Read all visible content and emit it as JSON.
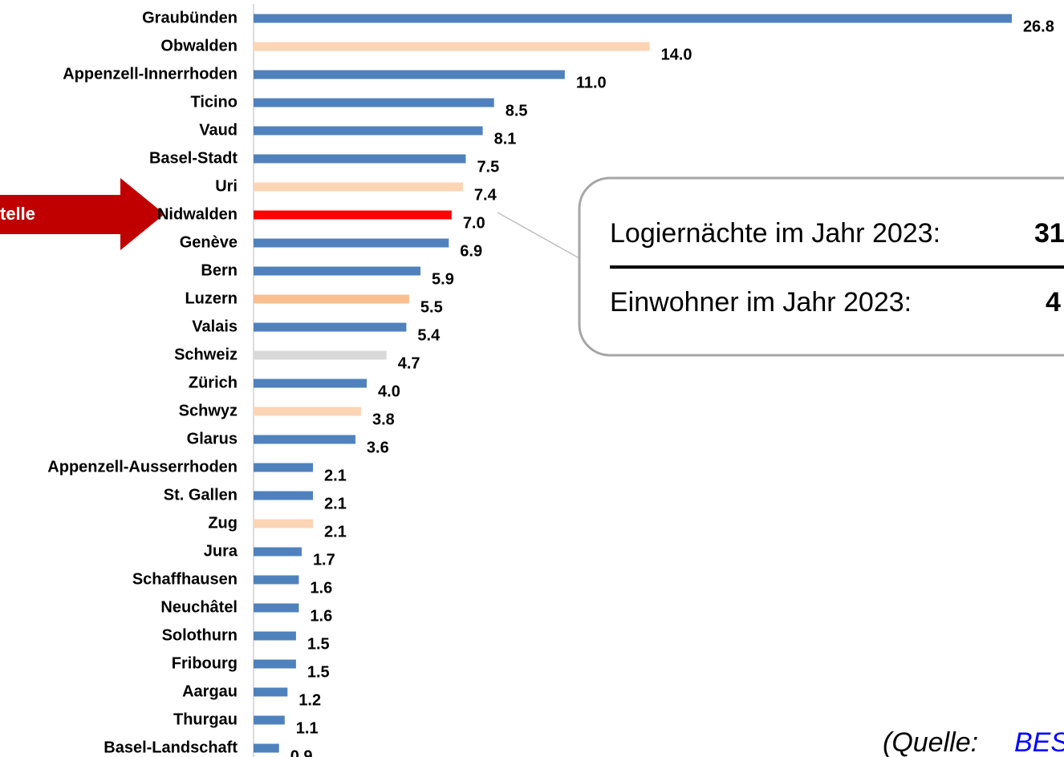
{
  "chart_data": {
    "type": "bar",
    "orientation": "horizontal",
    "categories": [
      "Graubünden",
      "Obwalden",
      "Appenzell-Innerrhoden",
      "Ticino",
      "Vaud",
      "Basel-Stadt",
      "Uri",
      "Nidwalden",
      "Genève",
      "Bern",
      "Luzern",
      "Valais",
      "Schweiz",
      "Zürich",
      "Schwyz",
      "Glarus",
      "Appenzell-Ausserrhoden",
      "St. Gallen",
      "Zug",
      "Jura",
      "Schaffhausen",
      "Neuchâtel",
      "Solothurn",
      "Fribourg",
      "Aargau",
      "Thurgau",
      "Basel-Landschaft"
    ],
    "values": [
      26.8,
      14.0,
      11.0,
      8.5,
      8.1,
      7.5,
      7.4,
      7.0,
      6.9,
      5.9,
      5.5,
      5.4,
      4.7,
      4.0,
      3.8,
      3.6,
      2.1,
      2.1,
      2.1,
      1.7,
      1.6,
      1.6,
      1.5,
      1.5,
      1.2,
      1.1,
      0.9
    ],
    "value_labels": [
      "26.8",
      "14.0",
      "11.0",
      "8.5",
      "8.1",
      "7.5",
      "7.4",
      "7.0",
      "6.9",
      "5.9",
      "5.5",
      "5.4",
      "4.7",
      "4.0",
      "3.8",
      "3.6",
      "2.1",
      "2.1",
      "2.1",
      "1.7",
      "1.6",
      "1.6",
      "1.5",
      "1.5",
      "1.2",
      "1.1",
      "0.9"
    ],
    "colors": [
      "#4f81bd",
      "#fcd5b5",
      "#4f81bd",
      "#4f81bd",
      "#4f81bd",
      "#4f81bd",
      "#fcd5b5",
      "#ff0000",
      "#4f81bd",
      "#4f81bd",
      "#f9bf8f",
      "#4f81bd",
      "#d9d9d9",
      "#4f81bd",
      "#fcd5b5",
      "#4f81bd",
      "#4f81bd",
      "#4f81bd",
      "#fcd5b5",
      "#4f81bd",
      "#4f81bd",
      "#4f81bd",
      "#4f81bd",
      "#4f81bd",
      "#4f81bd",
      "#4f81bd",
      "#4f81bd"
    ],
    "xlim": [
      0,
      27
    ],
    "arrow_label": "telle",
    "callout": {
      "line1": "Logiernächte im Jahr 2023:",
      "value1": "31",
      "line2": "Einwohner im Jahr 2023:",
      "value2": "4"
    },
    "source": {
      "text": "(Quelle:",
      "link": "BES"
    }
  }
}
